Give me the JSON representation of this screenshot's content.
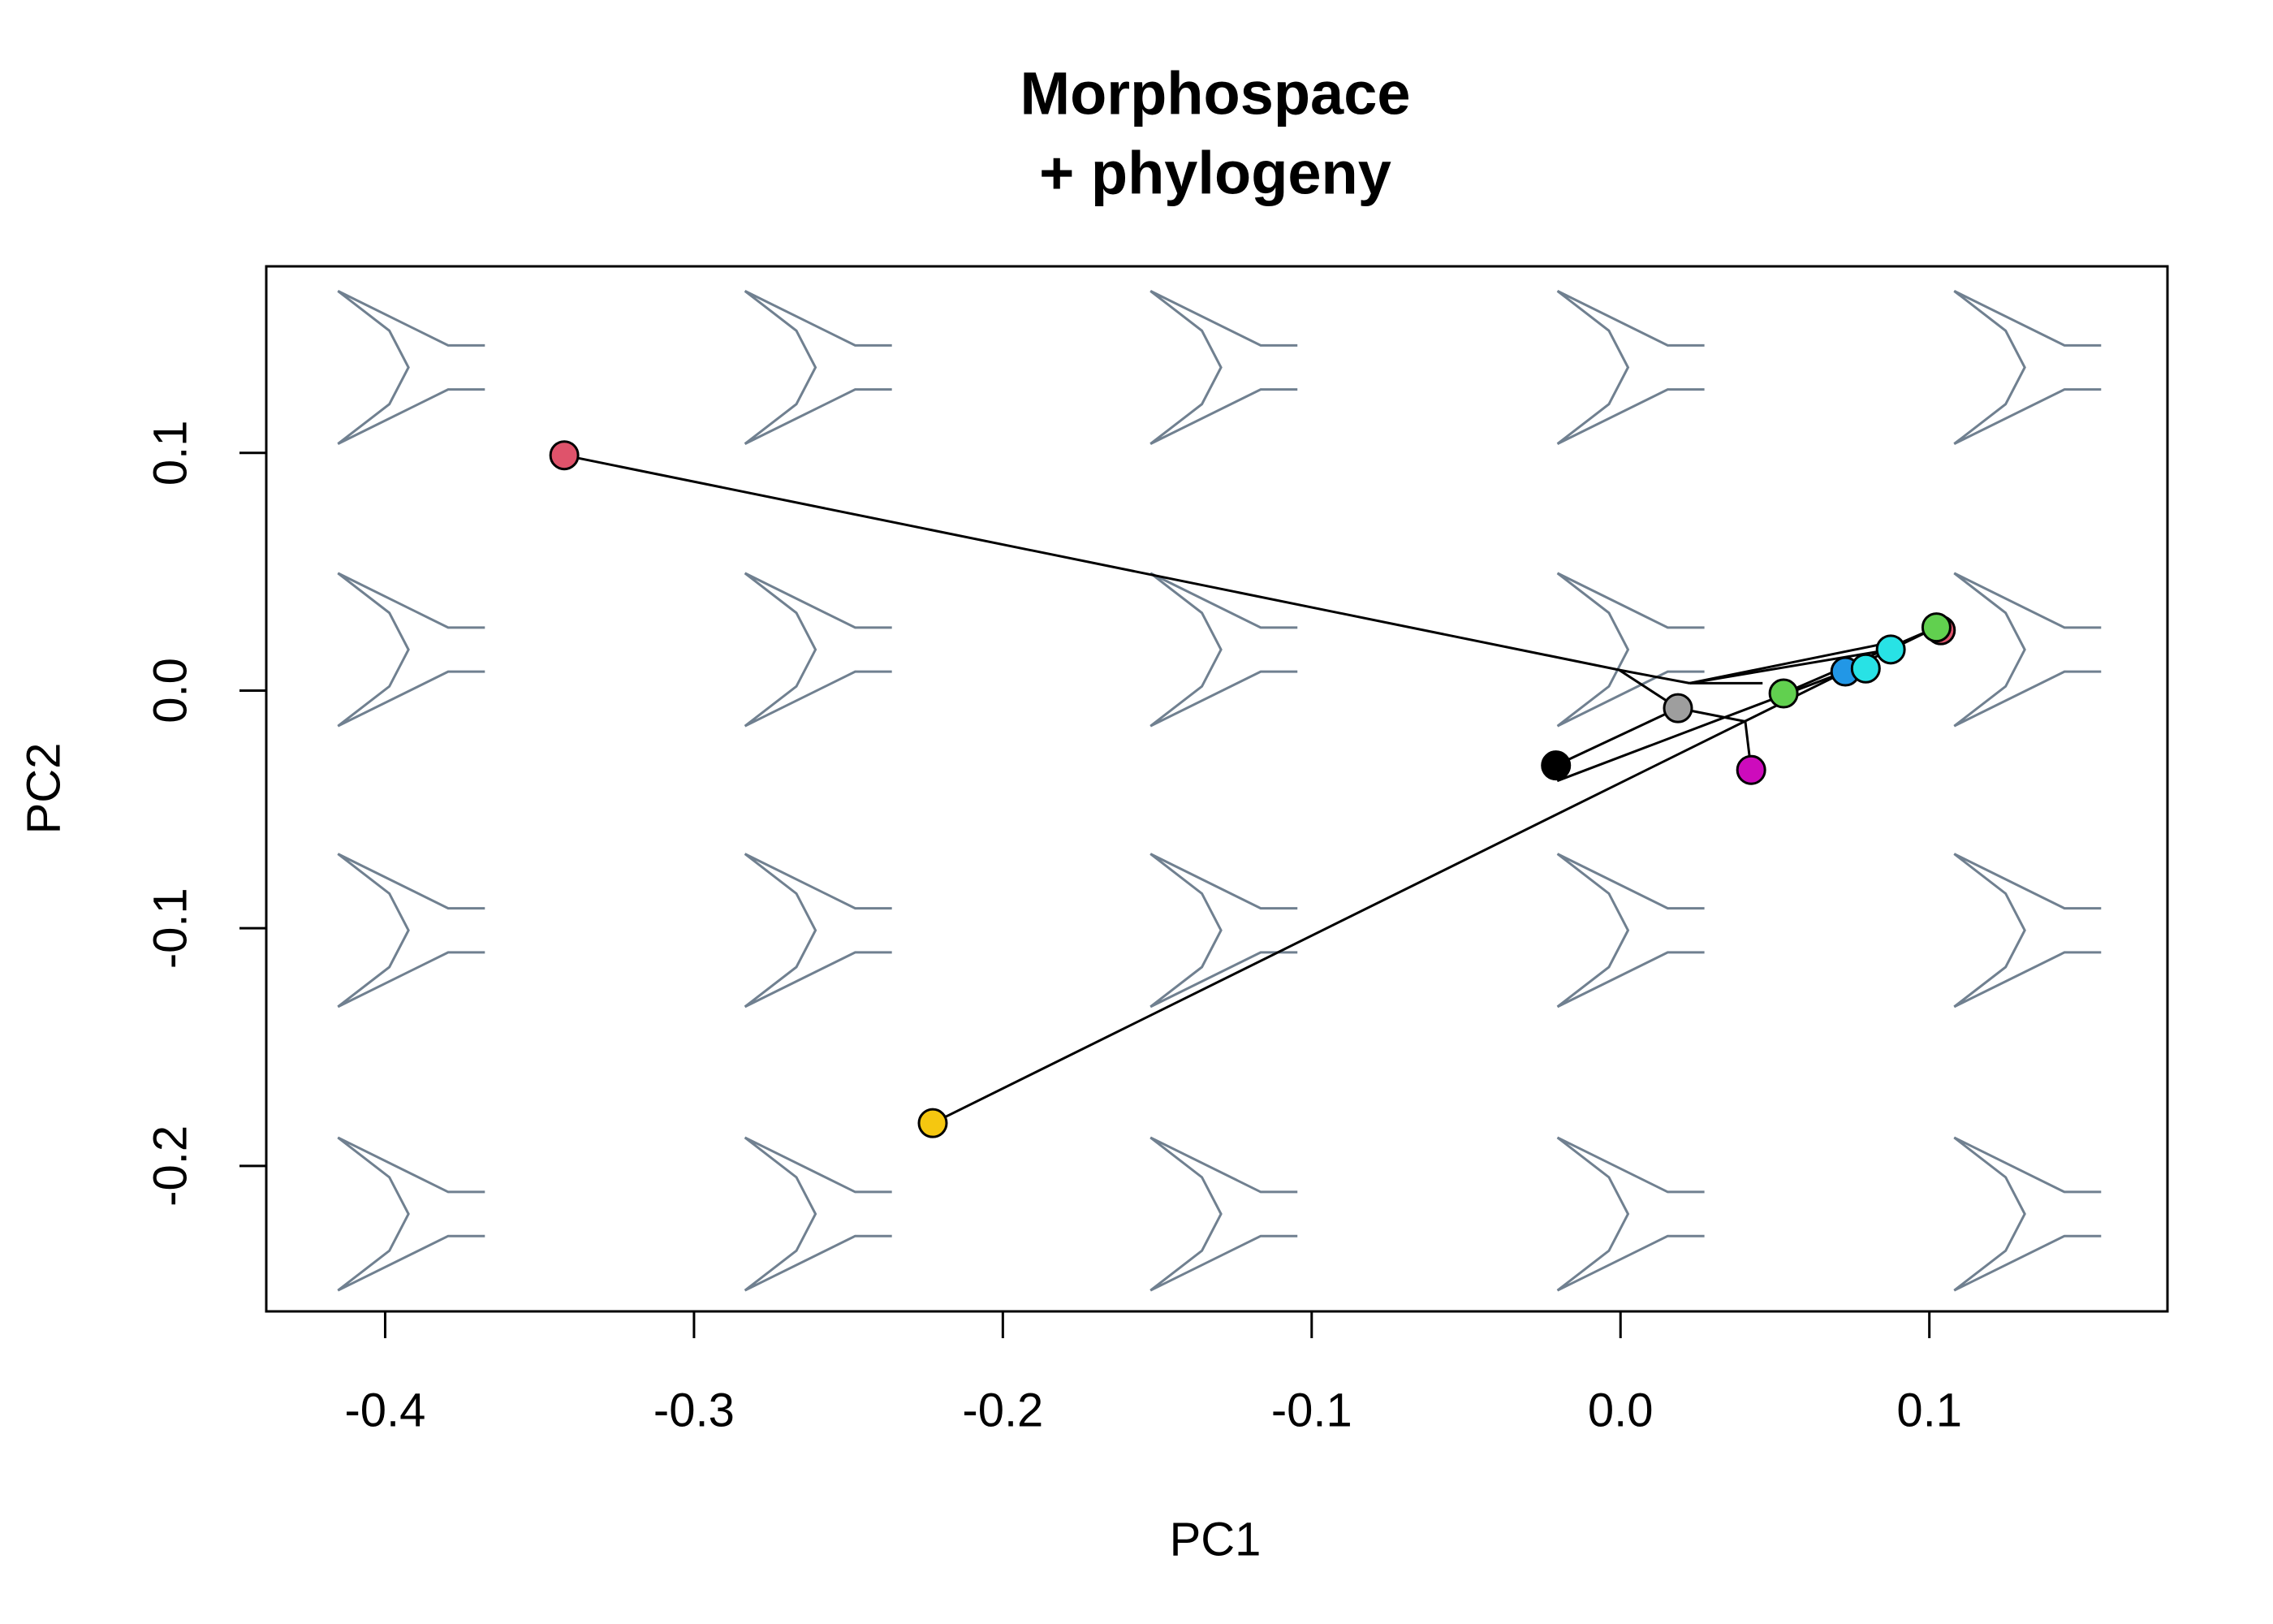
{
  "chart_data": {
    "type": "scatter",
    "title": [
      "Morphospace",
      "+ phylogeny"
    ],
    "x_label": "PC1",
    "y_label": "PC2",
    "xlim": [
      -0.4385,
      0.1771
    ],
    "ylim": [
      -0.2612,
      0.1785
    ],
    "xticks": [
      -0.4,
      -0.3,
      -0.2,
      -0.1,
      {
        "value": 0,
        "label": "0.0"
      },
      0.1
    ],
    "yticks": [
      -0.2,
      -0.1,
      {
        "value": 0,
        "label": "0.0"
      },
      0.1
    ],
    "shape_color": "#708090",
    "branch_color": "#000000",
    "branches": [
      {
        "x": [
          -0.342,
          -0.0005
        ],
        "y": [
          0.099,
          0.0087
        ]
      },
      {
        "x": [
          -0.0005,
          0.0224
        ],
        "y": [
          0.0087,
          0.0031
        ]
      },
      {
        "x": [
          -0.0005,
          0.0186
        ],
        "y": [
          0.0087,
          -0.0074
        ]
      },
      {
        "x": [
          0.0224,
          0.046
        ],
        "y": [
          0.0031,
          0.0031
        ]
      },
      {
        "x": [
          0.0224,
          0.0875
        ],
        "y": [
          0.0031,
          0.0173
        ]
      },
      {
        "x": [
          0.0186,
          0.0404
        ],
        "y": [
          -0.0074,
          -0.013
        ]
      },
      {
        "x": [
          0.0404,
          0.0423
        ],
        "y": [
          -0.013,
          -0.0334
        ]
      },
      {
        "x": [
          -0.0209,
          0.0186
        ],
        "y": [
          -0.0315,
          -0.0074
        ]
      },
      {
        "x": [
          -0.2227,
          0.0728
        ],
        "y": [
          -0.182,
          0.008
        ]
      },
      {
        "x": [
          -0.0205,
          0.0728
        ],
        "y": [
          -0.038,
          0.008
        ]
      },
      {
        "x": [
          0.0528,
          0.1023
        ],
        "y": [
          -0.0012,
          0.0266
        ]
      },
      {
        "x": [
          0.0224,
          0.0887
        ],
        "y": [
          0.0031,
          0.0206
        ]
      },
      {
        "x": [
          0.0728,
          0.1023
        ],
        "y": [
          0.008,
          0.0266
        ]
      }
    ],
    "points": {
      "x": [
        -0.342,
        -0.2227,
        -0.0209,
        0.0186,
        0.0423,
        0.0528,
        0.0728,
        0.0794,
        0.0875,
        0.1037,
        0.1023
      ],
      "y": [
        0.099,
        -0.182,
        -0.0315,
        -0.0074,
        -0.0334,
        -0.0012,
        0.008,
        0.0093,
        0.0173,
        0.0254,
        0.0266
      ],
      "colors": [
        "#df536b",
        "#f5c710",
        "#000000",
        "#9e9e9e",
        "#cd0bbc",
        "#61d04f",
        "#2297e6",
        "#28e2e5",
        "#28e2e5",
        "#df536b",
        "#61d04f"
      ]
    }
  }
}
